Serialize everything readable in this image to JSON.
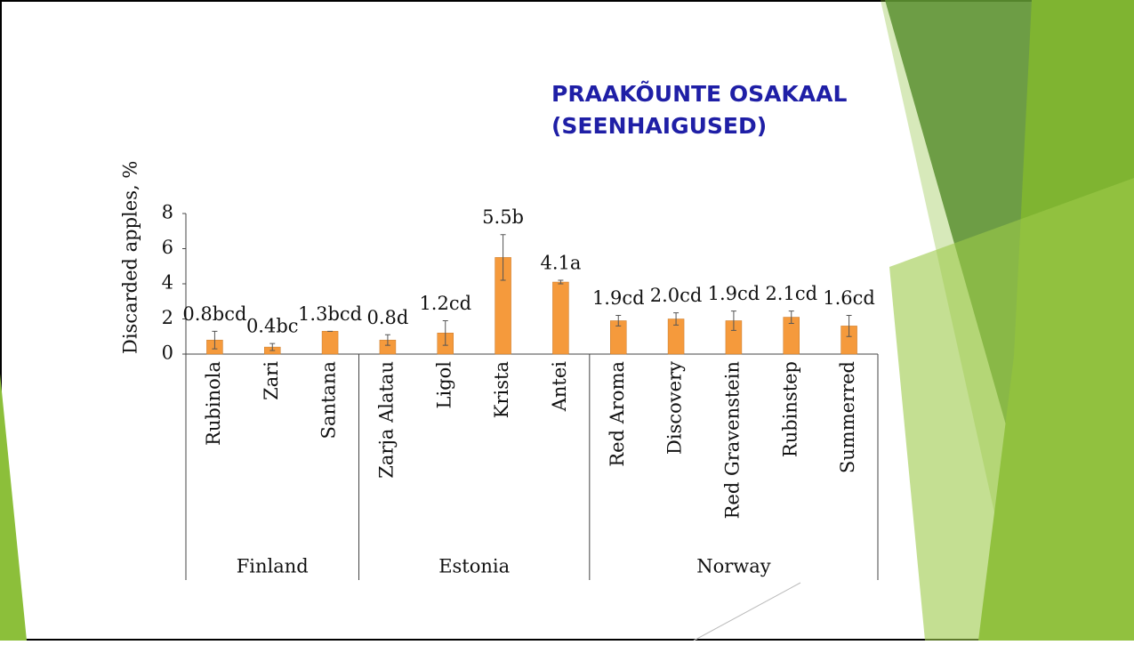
{
  "chart_data": {
    "type": "bar",
    "title": "PRAAKÕUNTE OSAKAAL (SEENHAIGUSED)",
    "y_label": "Discarded apples, %",
    "ylim": [
      0,
      8
    ],
    "yticks": [
      0,
      2,
      4,
      6,
      8
    ],
    "color": "#f59a3c",
    "groups": [
      {
        "name": "Finland",
        "categories": [
          "Rubinola",
          "Zari",
          "Santana"
        ],
        "values": [
          0.8,
          0.4,
          1.3
        ],
        "errors": [
          0.5,
          0.2,
          0
        ],
        "value_labels": [
          "0.8bcd",
          "0.4bc",
          "1.3bcd"
        ]
      },
      {
        "name": "Estonia",
        "categories": [
          "Zarja Alatau",
          "Ligol",
          "Krista",
          "Antei"
        ],
        "values": [
          0.8,
          1.2,
          5.5,
          4.1
        ],
        "errors": [
          0.3,
          0.7,
          1.3,
          0.1
        ],
        "value_labels": [
          "0.8d",
          "1.2cd",
          "5.5b",
          "4.1a"
        ]
      },
      {
        "name": "Norway",
        "categories": [
          "Red Aroma",
          "Discovery",
          "Red Gravenstein",
          "Rubinstep",
          "Summerred"
        ],
        "values": [
          1.9,
          2.0,
          1.9,
          2.1,
          1.6
        ],
        "errors": [
          0.3,
          0.35,
          0.55,
          0.35,
          0.6
        ],
        "value_labels": [
          "1.9cd",
          "2.0cd",
          "1.9cd",
          "2.1cd",
          "1.6cd"
        ]
      }
    ]
  }
}
